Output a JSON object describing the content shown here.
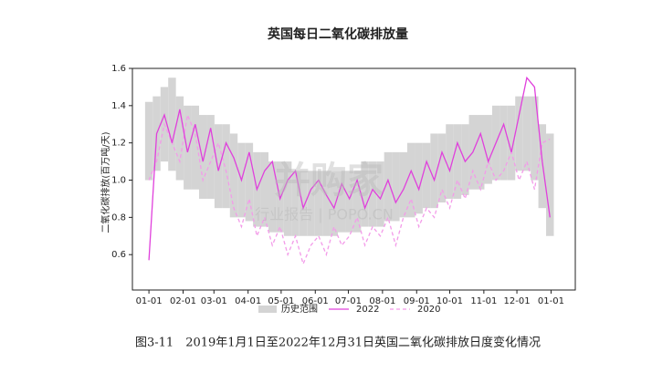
{
  "chart_data": {
    "type": "line",
    "title": "英国每日二氧化碳排放量",
    "y_label": "二氧化碳排放(百万吨/天)",
    "caption": "图3-11　2019年1月1日至2022年12月31日英国二氧化碳排放日度变化情况",
    "watermark": [
      "并购家",
      "行业报告 | POPO.CN"
    ],
    "x": [
      0,
      7,
      14,
      21,
      28,
      35,
      42,
      49,
      56,
      63,
      70,
      77,
      84,
      91,
      98,
      105,
      112,
      119,
      126,
      133,
      140,
      147,
      154,
      161,
      168,
      175,
      182,
      189,
      196,
      203,
      210,
      217,
      224,
      231,
      238,
      245,
      252,
      259,
      266,
      273,
      280,
      287,
      294,
      301,
      308,
      315,
      322,
      329,
      336,
      343,
      350,
      357,
      364
    ],
    "xlim": [
      -15,
      387
    ],
    "xticks": [
      {
        "value": 0,
        "label": "01-01"
      },
      {
        "value": 31,
        "label": "02-01"
      },
      {
        "value": 59,
        "label": "03-01"
      },
      {
        "value": 90,
        "label": "04-01"
      },
      {
        "value": 120,
        "label": "05-01"
      },
      {
        "value": 151,
        "label": "06-01"
      },
      {
        "value": 181,
        "label": "07-01"
      },
      {
        "value": 212,
        "label": "08-01"
      },
      {
        "value": 243,
        "label": "09-01"
      },
      {
        "value": 273,
        "label": "10-01"
      },
      {
        "value": 304,
        "label": "11-01"
      },
      {
        "value": 334,
        "label": "12-01"
      },
      {
        "value": 365,
        "label": "01-01"
      }
    ],
    "ylim": [
      0.41,
      1.6
    ],
    "yticks": [
      0.6,
      0.8,
      {
        "value": 1,
        "label": "1.0"
      },
      1.2,
      1.4,
      1.6
    ],
    "series": [
      {
        "name": "历史范围",
        "color": "#d4d4d4",
        "low": [
          1.0,
          1.05,
          1.1,
          1.05,
          1.0,
          0.95,
          0.95,
          0.9,
          0.9,
          0.85,
          0.85,
          0.8,
          0.8,
          0.78,
          0.75,
          0.75,
          0.72,
          0.72,
          0.7,
          0.7,
          0.7,
          0.7,
          0.7,
          0.7,
          0.7,
          0.72,
          0.72,
          0.72,
          0.75,
          0.75,
          0.75,
          0.78,
          0.78,
          0.8,
          0.8,
          0.82,
          0.85,
          0.85,
          0.88,
          0.9,
          0.9,
          0.92,
          0.95,
          0.95,
          0.98,
          1.0,
          1.0,
          1.0,
          1.05,
          1.05,
          1.0,
          0.85,
          0.7
        ],
        "high": [
          1.42,
          1.45,
          1.5,
          1.55,
          1.45,
          1.4,
          1.4,
          1.35,
          1.35,
          1.3,
          1.3,
          1.25,
          1.2,
          1.2,
          1.15,
          1.15,
          1.1,
          1.1,
          1.1,
          1.05,
          1.05,
          1.05,
          1.05,
          1.05,
          1.05,
          1.05,
          1.05,
          1.05,
          1.1,
          1.1,
          1.1,
          1.15,
          1.15,
          1.15,
          1.2,
          1.2,
          1.2,
          1.25,
          1.25,
          1.3,
          1.3,
          1.3,
          1.35,
          1.35,
          1.35,
          1.4,
          1.4,
          1.4,
          1.45,
          1.45,
          1.45,
          1.3,
          1.25
        ]
      },
      {
        "name": "2022",
        "color": "#e040dc",
        "values": [
          0.57,
          1.25,
          1.35,
          1.2,
          1.38,
          1.15,
          1.3,
          1.1,
          1.28,
          1.05,
          1.2,
          1.12,
          1.0,
          1.15,
          0.95,
          1.05,
          1.1,
          0.9,
          1.0,
          1.05,
          0.85,
          0.95,
          1.0,
          0.92,
          0.85,
          0.98,
          0.9,
          1.0,
          0.85,
          0.95,
          0.9,
          1.0,
          0.88,
          0.95,
          1.05,
          0.95,
          1.1,
          1.0,
          1.15,
          1.05,
          1.2,
          1.1,
          1.15,
          1.25,
          1.1,
          1.2,
          1.3,
          1.15,
          1.35,
          1.55,
          1.5,
          1.1,
          0.8
        ]
      },
      {
        "name": "2020",
        "color": "#f39be9",
        "dashed": true,
        "values": [
          1.0,
          1.1,
          1.3,
          1.2,
          1.1,
          1.35,
          1.25,
          1.0,
          1.1,
          1.2,
          1.05,
          0.85,
          0.75,
          0.9,
          0.7,
          0.8,
          0.65,
          0.75,
          0.6,
          0.7,
          0.55,
          0.65,
          0.7,
          0.6,
          0.75,
          0.65,
          0.7,
          0.8,
          0.65,
          0.75,
          0.7,
          0.8,
          0.65,
          0.8,
          0.9,
          0.75,
          0.85,
          0.8,
          0.95,
          0.85,
          1.0,
          0.9,
          1.05,
          0.95,
          1.1,
          1.0,
          1.05,
          1.15,
          1.0,
          1.1,
          0.95,
          1.2,
          1.22
        ]
      }
    ]
  }
}
